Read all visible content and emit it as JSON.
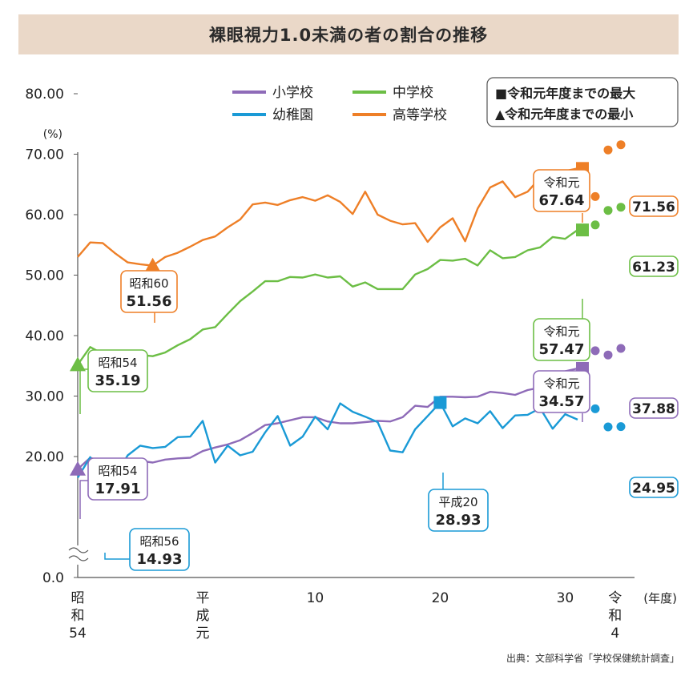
{
  "title": "裸眼視力1.0未満の者の割合の推移",
  "source": "出典：文部科学省「学校保健統計調査」",
  "colors": {
    "elementary": "#8e6bb8",
    "junior_high": "#6cbe45",
    "kindergarten": "#1a9ad6",
    "high_school": "#ee7f27",
    "label_text": "#222222"
  },
  "marker_legend": {
    "max": "■令和元年度までの最大",
    "min": "▲令和元年度までの最小"
  },
  "chart_data": {
    "type": "line",
    "y_unit": "(%)",
    "x_unit": "(年度)",
    "ylim": [
      0,
      80
    ],
    "y_ticks": [
      "80.00",
      "70.00",
      "60.00",
      "50.00",
      "40.00",
      "30.00",
      "20.00",
      "0.0"
    ],
    "x_ticks": [
      {
        "x": 1979,
        "label": "昭和54"
      },
      {
        "x": 1989,
        "label": "平成元"
      },
      {
        "x": 1998,
        "label": "10"
      },
      {
        "x": 2008,
        "label": "20"
      },
      {
        "x": 2018,
        "label": "30"
      },
      {
        "x": 2022,
        "label": "令和4"
      }
    ],
    "grid": false,
    "legend_position": "top",
    "series": [
      {
        "name": "小学校",
        "key": "elementary",
        "x": [
          1979,
          1980,
          1981,
          1982,
          1983,
          1984,
          1985,
          1986,
          1987,
          1988,
          1989,
          1990,
          1991,
          1992,
          1993,
          1994,
          1995,
          1996,
          1997,
          1998,
          1999,
          2000,
          2001,
          2002,
          2003,
          2004,
          2005,
          2006,
          2007,
          2008,
          2009,
          2010,
          2011,
          2012,
          2013,
          2014,
          2015,
          2016,
          2017,
          2018,
          2019
        ],
        "y": [
          17.91,
          19.8,
          19.1,
          18.5,
          18.2,
          19.3,
          19.0,
          19.5,
          19.7,
          19.8,
          20.9,
          21.5,
          22.0,
          22.7,
          23.9,
          25.2,
          25.5,
          26.0,
          26.5,
          26.5,
          25.8,
          25.5,
          25.5,
          25.7,
          25.9,
          25.8,
          26.5,
          28.4,
          28.2,
          29.9,
          29.9,
          29.8,
          29.9,
          30.7,
          30.5,
          30.2,
          31.0,
          31.4,
          32.5,
          34.1,
          34.57
        ],
        "post_x": [
          2020,
          2021,
          2022
        ],
        "post_y": [
          37.5,
          36.8,
          37.88
        ]
      },
      {
        "name": "中学校",
        "key": "junior_high",
        "x": [
          1979,
          1980,
          1981,
          1982,
          1983,
          1984,
          1985,
          1986,
          1987,
          1988,
          1989,
          1990,
          1991,
          1992,
          1993,
          1994,
          1995,
          1996,
          1997,
          1998,
          1999,
          2000,
          2001,
          2002,
          2003,
          2004,
          2005,
          2006,
          2007,
          2008,
          2009,
          2010,
          2011,
          2012,
          2013,
          2014,
          2015,
          2016,
          2017,
          2018,
          2019
        ],
        "y": [
          35.19,
          38.1,
          37.0,
          36.4,
          35.5,
          36.8,
          36.6,
          37.2,
          38.4,
          39.4,
          41.0,
          41.4,
          43.6,
          45.7,
          47.3,
          49.0,
          49.0,
          49.7,
          49.6,
          50.1,
          49.6,
          49.8,
          48.1,
          48.8,
          47.7,
          47.7,
          47.7,
          50.1,
          51.0,
          52.5,
          52.4,
          52.7,
          51.6,
          54.1,
          52.8,
          53.0,
          54.1,
          54.6,
          56.3,
          56.0,
          57.47
        ],
        "post_x": [
          2020,
          2021,
          2022
        ],
        "post_y": [
          58.3,
          60.7,
          61.23
        ]
      },
      {
        "name": "幼稚園",
        "key": "kindergarten",
        "x": [
          1979,
          1980,
          1981,
          1982,
          1983,
          1984,
          1985,
          1986,
          1987,
          1988,
          1989,
          1990,
          1991,
          1992,
          1993,
          1994,
          1995,
          1996,
          1997,
          1998,
          1999,
          2000,
          2001,
          2002,
          2003,
          2004,
          2005,
          2006,
          2007,
          2008,
          2009,
          2010,
          2011,
          2012,
          2013,
          2014,
          2015,
          2016,
          2017,
          2018,
          2019
        ],
        "y": [
          16.5,
          19.9,
          14.93,
          16.8,
          20.2,
          21.8,
          21.4,
          21.6,
          23.2,
          23.3,
          25.9,
          19.0,
          21.8,
          20.2,
          20.8,
          24.0,
          26.7,
          21.8,
          23.3,
          26.6,
          24.5,
          28.8,
          27.4,
          26.6,
          25.7,
          21.0,
          20.7,
          24.5,
          26.7,
          28.93,
          25.0,
          26.3,
          25.5,
          27.5,
          24.7,
          26.8,
          26.9,
          28.0,
          24.6,
          27.0,
          26.1
        ],
        "post_x": [
          2020,
          2021,
          2022
        ],
        "post_y": [
          27.9,
          24.9,
          24.95
        ]
      },
      {
        "name": "高等学校",
        "key": "high_school",
        "x": [
          1979,
          1980,
          1981,
          1982,
          1983,
          1984,
          1985,
          1986,
          1987,
          1988,
          1989,
          1990,
          1991,
          1992,
          1993,
          1994,
          1995,
          1996,
          1997,
          1998,
          1999,
          2000,
          2001,
          2002,
          2003,
          2004,
          2005,
          2006,
          2007,
          2008,
          2009,
          2010,
          2011,
          2012,
          2013,
          2014,
          2015,
          2016,
          2017,
          2018,
          2019
        ],
        "y": [
          53.0,
          55.4,
          55.3,
          53.6,
          52.1,
          51.8,
          51.56,
          53.0,
          53.7,
          54.7,
          55.8,
          56.4,
          57.9,
          59.2,
          61.7,
          62.0,
          61.6,
          62.4,
          62.9,
          62.3,
          63.2,
          62.1,
          60.1,
          63.8,
          60.0,
          59.0,
          58.4,
          58.6,
          55.5,
          57.9,
          59.4,
          55.6,
          61.0,
          64.5,
          65.5,
          62.9,
          63.8,
          66.1,
          62.5,
          67.2,
          67.64
        ],
        "post_x": [
          2020,
          2021,
          2022
        ],
        "post_y": [
          63.0,
          70.7,
          71.56
        ]
      }
    ],
    "max_markers": [
      {
        "series": "elementary",
        "x": 2019,
        "y": 34.57,
        "era": "令和元",
        "value": "34.57"
      },
      {
        "series": "junior_high",
        "x": 2019,
        "y": 57.47,
        "era": "令和元",
        "value": "57.47"
      },
      {
        "series": "kindergarten",
        "x": 2008,
        "y": 28.93,
        "era": "平成20",
        "value": "28.93"
      },
      {
        "series": "high_school",
        "x": 2019,
        "y": 67.64,
        "era": "令和元",
        "value": "67.64"
      }
    ],
    "min_markers": [
      {
        "series": "elementary",
        "x": 1979,
        "y": 17.91,
        "era": "昭和54",
        "value": "17.91"
      },
      {
        "series": "junior_high",
        "x": 1979,
        "y": 35.19,
        "era": "昭和54",
        "value": "35.19"
      },
      {
        "series": "kindergarten",
        "x": 1981,
        "y": 14.93,
        "era": "昭和56",
        "value": "14.93"
      },
      {
        "series": "high_school",
        "x": 1985,
        "y": 51.56,
        "era": "昭和60",
        "value": "51.56"
      }
    ],
    "latest_labels": [
      {
        "series": "high_school",
        "value": "71.56"
      },
      {
        "series": "junior_high",
        "value": "61.23"
      },
      {
        "series": "elementary",
        "value": "37.88"
      },
      {
        "series": "kindergarten",
        "value": "24.95"
      }
    ]
  }
}
